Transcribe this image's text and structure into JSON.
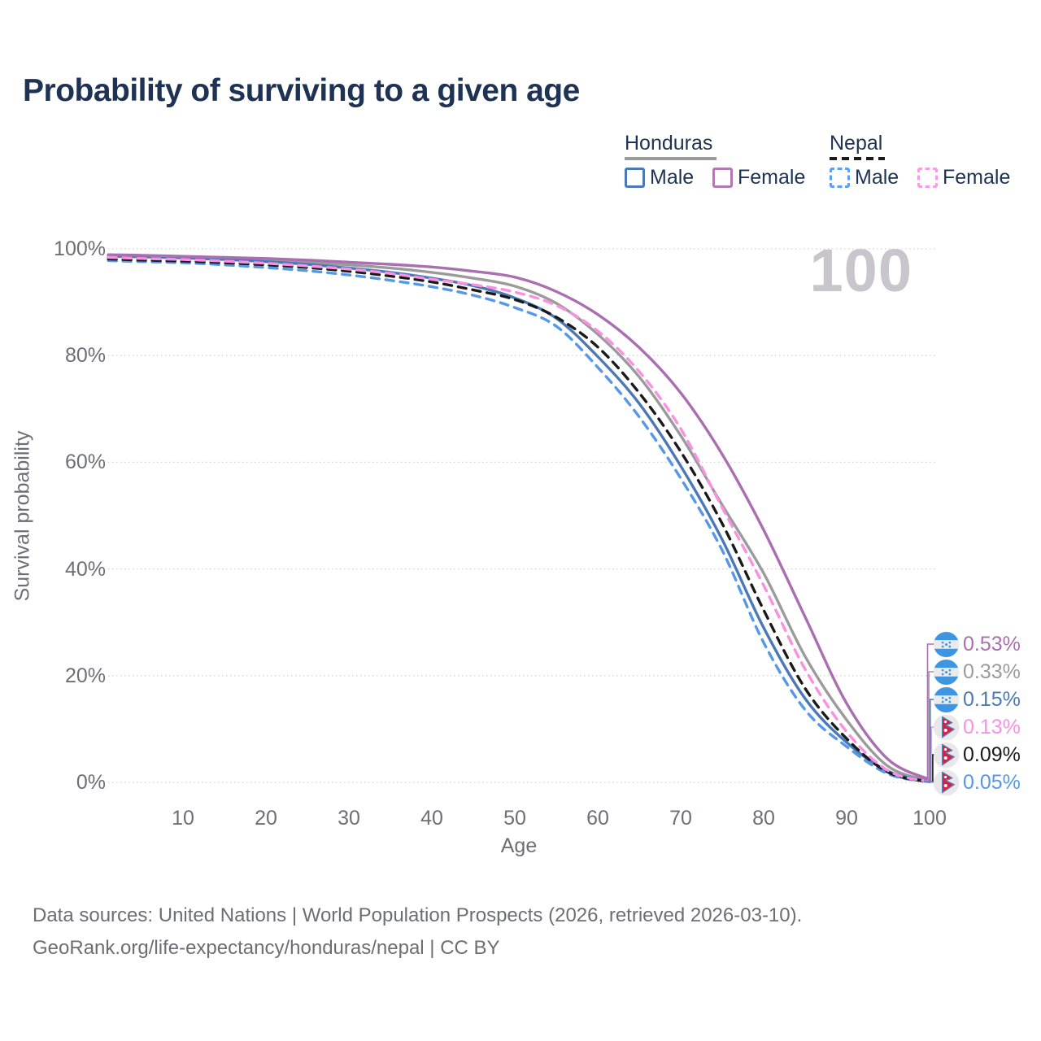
{
  "title": "Probability of surviving to a given age",
  "watermark": "100",
  "legend": {
    "groups": [
      {
        "label": "Honduras",
        "line_style": "solid",
        "underline_color": "#9b9b9b",
        "items": [
          {
            "label": "Male",
            "color": "#4a79b5",
            "dashed": false
          },
          {
            "label": "Female",
            "color": "#b278b2",
            "dashed": false
          }
        ]
      },
      {
        "label": "Nepal",
        "line_style": "dashed",
        "underline_color": "#1a1a1a",
        "items": [
          {
            "label": "Male",
            "color": "#5da0f0",
            "dashed": true
          },
          {
            "label": "Female",
            "color": "#fb9be8",
            "dashed": true
          }
        ]
      }
    ]
  },
  "chart_data": {
    "type": "line",
    "title": "Probability of surviving to a given age",
    "xlabel": "Age",
    "ylabel": "Survival probability",
    "xlim": [
      1,
      100
    ],
    "ylim": [
      0,
      100
    ],
    "grid": "dotted horizontal",
    "x_ticks": [
      10,
      20,
      30,
      40,
      50,
      60,
      70,
      80,
      90,
      100
    ],
    "y_ticks": [
      {
        "value": 0,
        "label": "0%"
      },
      {
        "value": 20,
        "label": "20%"
      },
      {
        "value": 40,
        "label": "40%"
      },
      {
        "value": 60,
        "label": "60%"
      },
      {
        "value": 80,
        "label": "80%"
      },
      {
        "value": 100,
        "label": "100%"
      }
    ],
    "x": [
      1,
      5,
      10,
      15,
      20,
      25,
      30,
      35,
      40,
      45,
      50,
      55,
      60,
      65,
      70,
      75,
      80,
      85,
      90,
      95,
      100
    ],
    "series": [
      {
        "name": "Honduras Female",
        "country": "Honduras",
        "sex": "Female",
        "color": "#a96fb0",
        "dashed": false,
        "flag": "honduras",
        "end_label": "0.53%",
        "values": [
          98.9,
          98.8,
          98.6,
          98.4,
          98.2,
          97.9,
          97.5,
          97.1,
          96.6,
          95.8,
          94.7,
          92.0,
          87.7,
          81.5,
          73.0,
          61.5,
          47.3,
          31.0,
          14.8,
          4.3,
          0.53
        ]
      },
      {
        "name": "Honduras Both sexes",
        "country": "Honduras",
        "sex": "Both",
        "color": "#9b9b9b",
        "dashed": false,
        "flag": "honduras",
        "end_label": "0.33%",
        "values": [
          98.75,
          98.6,
          98.4,
          98.2,
          97.9,
          97.5,
          97.0,
          96.4,
          95.6,
          94.5,
          93.0,
          89.8,
          84.0,
          76.0,
          65.0,
          52.0,
          39.2,
          23.6,
          11.7,
          3.0,
          0.33
        ]
      },
      {
        "name": "Honduras Male",
        "country": "Honduras",
        "sex": "Male",
        "color": "#4a79b5",
        "dashed": false,
        "flag": "honduras",
        "end_label": "0.15%",
        "values": [
          98.6,
          98.5,
          98.3,
          98.0,
          97.6,
          97.1,
          96.4,
          95.6,
          94.5,
          93.1,
          90.8,
          87.0,
          79.8,
          71.0,
          59.3,
          45.5,
          29.0,
          15.7,
          7.5,
          2.1,
          0.15
        ]
      },
      {
        "name": "Nepal Female",
        "country": "Nepal",
        "sex": "Female",
        "color": "#fa90e2",
        "dashed": true,
        "flag": "nepal",
        "end_label": "0.13%",
        "values": [
          98.4,
          98.2,
          98.0,
          97.7,
          97.3,
          96.8,
          96.2,
          95.4,
          94.3,
          93.3,
          91.9,
          89.4,
          84.6,
          77.0,
          66.3,
          51.5,
          36.9,
          21.2,
          9.5,
          2.2,
          0.13
        ]
      },
      {
        "name": "Nepal Both sexes",
        "country": "Nepal",
        "sex": "Both",
        "color": "#1a1a1a",
        "dashed": true,
        "flag": "nepal",
        "end_label": "0.09%",
        "values": [
          98.1,
          97.9,
          97.7,
          97.4,
          97.0,
          96.5,
          95.8,
          94.9,
          93.8,
          92.3,
          90.5,
          87.2,
          81.6,
          73.0,
          62.0,
          48.5,
          32.3,
          17.6,
          8.2,
          1.9,
          0.09
        ]
      },
      {
        "name": "Nepal Male",
        "country": "Nepal",
        "sex": "Male",
        "color": "#5598e8",
        "dashed": true,
        "flag": "nepal",
        "end_label": "0.05%",
        "values": [
          97.8,
          97.6,
          97.4,
          97.0,
          96.5,
          95.9,
          95.1,
          94.1,
          92.9,
          91.3,
          89.0,
          85.5,
          77.8,
          68.5,
          57.0,
          43.5,
          26.2,
          13.6,
          6.7,
          1.6,
          0.05
        ]
      }
    ],
    "legend_position": "top-right",
    "end_label_annotation": "survival probability at age 100 per series"
  },
  "footer": {
    "line1": "Data sources: United Nations | World Population Prospects (2026, retrieved 2026-03-10).",
    "line2": "GeoRank.org/life-expectancy/honduras/nepal | CC BY"
  },
  "colors": {
    "title_text": "#1e3354",
    "axis_text": "#6e6e78",
    "footer_text": "#6d6d76",
    "watermark_text": "#c9c5cd",
    "gridline": "#d2d2d6",
    "honduras_flag_blue": "#3f96e0",
    "nepal_flag_crimson": "#d41f45"
  }
}
